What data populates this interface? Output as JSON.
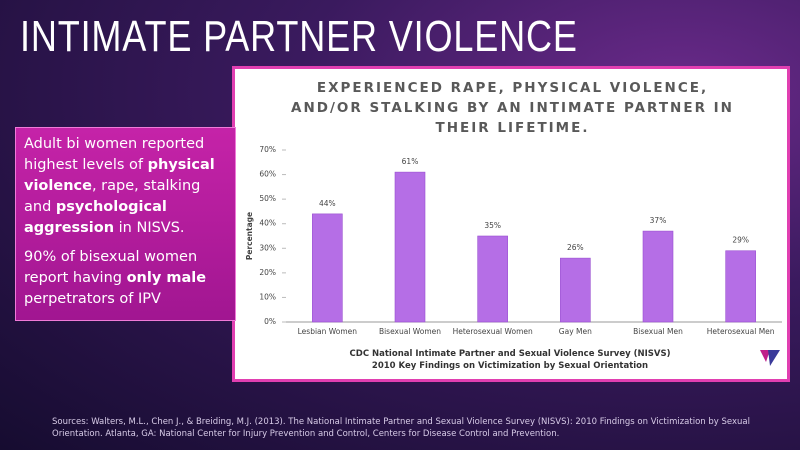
{
  "slide": {
    "title": "INTIMATE PARTNER VIOLENCE",
    "sidebar": [
      [
        {
          "text": "Adult bi women reported highest levels of "
        },
        {
          "text": "physical violence",
          "bold": true
        },
        {
          "text": ", rape, stalking and "
        },
        {
          "text": "psychological aggression",
          "bold": true
        },
        {
          "text": " in NISVS."
        }
      ],
      [
        {
          "text": "90% of bisexual women report having "
        },
        {
          "text": "only male",
          "bold": true
        },
        {
          "text": " perpetrators of IPV"
        }
      ]
    ],
    "sources": "Sources: Walters, M.L., Chen J., & Breiding, M.J. (2013). The National Intimate Partner and Sexual Violence Survey (NISVS): 2010 Findings on Victimization by Sexual Orientation. Atlanta, GA: National Center for Injury Prevention and Control, Centers for Disease Control and Prevention."
  },
  "chart_data": {
    "type": "bar",
    "title": "EXPERIENCED RAPE, PHYSICAL VIOLENCE, AND/OR STALKING BY AN INTIMATE PARTNER IN THEIR LIFETIME.",
    "y_label": "Percentage",
    "caption": [
      "CDC National Intimate Partner and Sexual Violence Survey (NISVS)",
      "2010 Key Findings on Victimization by Sexual Orientation"
    ],
    "categories": [
      "Lesbian Women",
      "Bisexual Women",
      "Heterosexual Women",
      "Gay Men",
      "Bisexual Men",
      "Heterosexual Men"
    ],
    "values": [
      44,
      61,
      35,
      26,
      37,
      29
    ],
    "value_labels": [
      "44%",
      "61%",
      "35%",
      "26%",
      "37%",
      "29%"
    ],
    "color": "#b56ee6",
    "ylim": [
      0,
      70
    ],
    "yticks": [
      {
        "value": 0,
        "label": "0%"
      },
      {
        "value": 10,
        "label": "10%"
      },
      {
        "value": 20,
        "label": "20%"
      },
      {
        "value": 30,
        "label": "30%"
      },
      {
        "value": 40,
        "label": "40%"
      },
      {
        "value": 50,
        "label": "50%"
      },
      {
        "value": 60,
        "label": "60%"
      },
      {
        "value": 70,
        "label": "70%"
      }
    ],
    "grid": false
  }
}
